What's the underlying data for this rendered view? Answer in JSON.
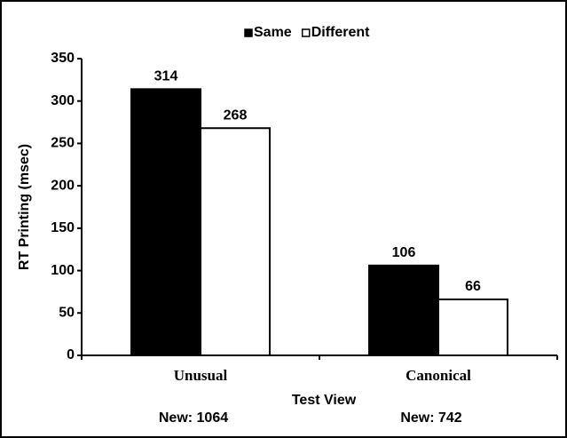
{
  "chart_data": {
    "type": "bar",
    "categories": [
      "Unusual",
      "Canonical"
    ],
    "series": [
      {
        "name": "Same",
        "color": "#000000",
        "values": [
          314,
          106
        ]
      },
      {
        "name": "Different",
        "color": "#ffffff",
        "values": [
          268,
          66
        ]
      }
    ],
    "ylim": [
      0,
      350
    ],
    "yticks": [
      0,
      50,
      100,
      150,
      200,
      250,
      300,
      350
    ],
    "y_label": "RT Printing (msec)",
    "x_label": "Test View",
    "annotations": [
      "New:  1064",
      "New:  742"
    ],
    "legend": "top"
  }
}
